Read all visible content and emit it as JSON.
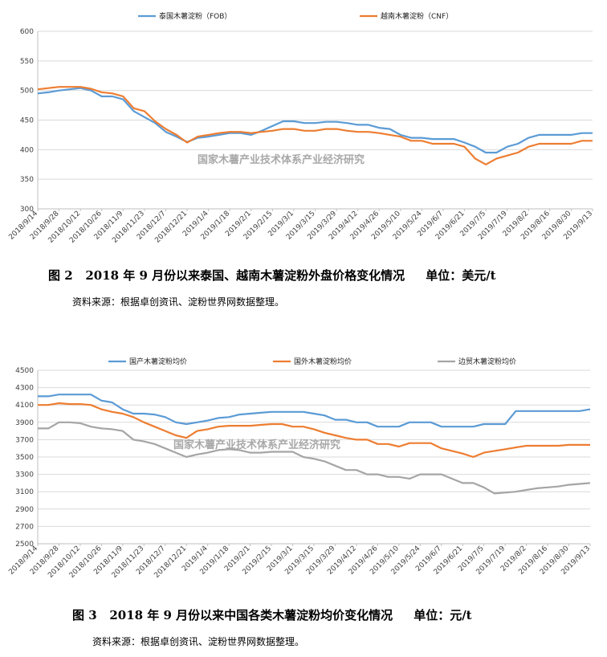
{
  "chart_data": [
    {
      "type": "line",
      "ylim": [
        300,
        600
      ],
      "yticks": [
        300,
        350,
        400,
        450,
        500,
        550,
        600
      ],
      "x_labels": [
        "2018/9/14",
        "2018/9/28",
        "2018/10/12",
        "2018/10/26",
        "2018/11/9",
        "2018/11/23",
        "2018/12/7",
        "2018/12/21",
        "2019/1/4",
        "2019/1/18",
        "2019/2/1",
        "2019/2/15",
        "2019/3/1",
        "2019/3/15",
        "2019/3/29",
        "2019/4/12",
        "2019/4/26",
        "2019/5/10",
        "2019/5/24",
        "2019/6/7",
        "2019/6/21",
        "2019/7/5",
        "2019/7/19",
        "2019/8/2",
        "2019/8/16",
        "2019/8/30",
        "2019/9/13"
      ],
      "legend_position": "top",
      "grid": "horizontal",
      "watermark": "国家木薯产业技术体系产业经济研究",
      "series": [
        {
          "name": "泰国木薯淀粉（FOB）",
          "color": "#5b9bd5",
          "values": [
            495,
            497,
            500,
            502,
            504,
            500,
            490,
            490,
            485,
            465,
            455,
            445,
            430,
            422,
            413,
            420,
            422,
            425,
            428,
            428,
            425,
            432,
            440,
            448,
            448,
            445,
            445,
            447,
            447,
            445,
            442,
            442,
            437,
            435,
            425,
            420,
            420,
            418,
            418,
            418,
            412,
            405,
            395,
            395,
            405,
            410,
            420,
            425,
            425,
            425,
            425,
            428,
            428
          ]
        },
        {
          "name": "越南木薯淀粉（CNF）",
          "color": "#ed7d31",
          "values": [
            502,
            504,
            506,
            506,
            506,
            503,
            497,
            495,
            490,
            470,
            465,
            448,
            435,
            425,
            412,
            422,
            425,
            428,
            430,
            430,
            428,
            430,
            432,
            435,
            435,
            432,
            432,
            435,
            435,
            432,
            430,
            430,
            428,
            425,
            422,
            415,
            415,
            410,
            410,
            410,
            405,
            385,
            375,
            385,
            390,
            395,
            405,
            410,
            410,
            410,
            410,
            415,
            415
          ]
        }
      ]
    },
    {
      "type": "line",
      "ylim": [
        2500,
        4500
      ],
      "yticks": [
        2500,
        2700,
        2900,
        3100,
        3300,
        3500,
        3700,
        3900,
        4100,
        4300,
        4500
      ],
      "x_labels": [
        "2018/9/14",
        "2018/9/28",
        "2018/10/12",
        "2018/10/26",
        "2018/11/9",
        "2018/11/23",
        "2018/12/7",
        "2018/12/21",
        "2019/1/4",
        "2019/1/18",
        "2019/2/1",
        "2019/2/15",
        "2019/3/1",
        "2019/3/15",
        "2019/3/29",
        "2019/4/12",
        "2019/4/26",
        "2019/5/10",
        "2019/5/24",
        "2019/6/7",
        "2019/6/21",
        "2019/7/5",
        "2019/7/19",
        "2019/8/2",
        "2019/8/16",
        "2019/8/30",
        "2019/9/13"
      ],
      "legend_position": "top",
      "grid": "horizontal",
      "watermark": "国家木薯产业技术体系产业经济研究",
      "series": [
        {
          "name": "国产木薯淀粉均价",
          "color": "#5b9bd5",
          "values": [
            4200,
            4200,
            4220,
            4220,
            4220,
            4220,
            4150,
            4130,
            4050,
            4000,
            4000,
            3990,
            3960,
            3900,
            3880,
            3900,
            3920,
            3950,
            3960,
            3990,
            4000,
            4010,
            4020,
            4020,
            4020,
            4020,
            4000,
            3980,
            3930,
            3930,
            3900,
            3900,
            3850,
            3850,
            3850,
            3900,
            3900,
            3900,
            3850,
            3850,
            3850,
            3850,
            3880,
            3880,
            3880,
            4030,
            4030,
            4030,
            4030,
            4030,
            4030,
            4030,
            4050
          ]
        },
        {
          "name": "国外木薯淀粉均价",
          "color": "#ed7d31",
          "values": [
            4100,
            4100,
            4120,
            4110,
            4110,
            4100,
            4050,
            4020,
            4000,
            3960,
            3900,
            3850,
            3800,
            3750,
            3720,
            3800,
            3820,
            3850,
            3860,
            3860,
            3860,
            3870,
            3880,
            3880,
            3850,
            3850,
            3820,
            3780,
            3750,
            3720,
            3700,
            3700,
            3650,
            3650,
            3620,
            3660,
            3660,
            3660,
            3600,
            3570,
            3540,
            3500,
            3550,
            3570,
            3590,
            3610,
            3630,
            3630,
            3630,
            3630,
            3640,
            3640,
            3640
          ]
        },
        {
          "name": "边贸木薯淀粉均价",
          "color": "#a5a5a5",
          "values": [
            3830,
            3830,
            3900,
            3900,
            3890,
            3850,
            3830,
            3820,
            3800,
            3700,
            3680,
            3650,
            3600,
            3550,
            3500,
            3530,
            3550,
            3580,
            3590,
            3580,
            3550,
            3550,
            3560,
            3560,
            3560,
            3500,
            3480,
            3450,
            3400,
            3350,
            3350,
            3300,
            3300,
            3270,
            3270,
            3250,
            3300,
            3300,
            3300,
            3250,
            3200,
            3200,
            3150,
            3080,
            3090,
            3100,
            3120,
            3140,
            3150,
            3160,
            3180,
            3190,
            3200
          ]
        }
      ]
    }
  ],
  "captions": {
    "fig2_title": "图 2   2018 年 9 月份以来泰国、越南木薯淀粉外盘价格变化情况",
    "fig2_unit": "单位：美元/t",
    "fig2_source": "资料来源：根据卓创资讯、淀粉世界网数据整理。",
    "fig3_title": "图 3   2018 年 9 月份以来中国各类木薯淀粉均价变化情况",
    "fig3_unit": "单位：元/t",
    "fig3_source": "资料来源：根据卓创资讯、淀粉世界网数据整理。"
  }
}
